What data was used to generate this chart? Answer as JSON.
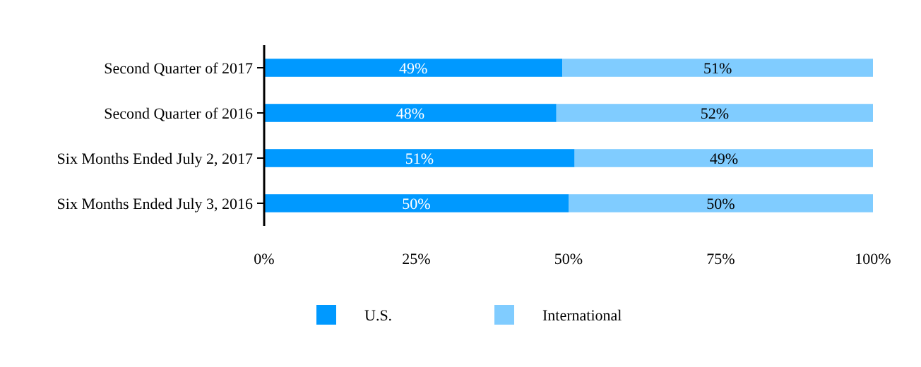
{
  "chart_data": {
    "type": "bar",
    "orientation": "horizontal",
    "stacked": true,
    "categories": [
      "Second Quarter of 2017",
      "Second Quarter of 2016",
      "Six Months Ended July 2, 2017",
      "Six Months Ended July 3, 2016"
    ],
    "series": [
      {
        "name": "U.S.",
        "color": "#0099ff",
        "values": [
          49,
          48,
          51,
          50
        ],
        "value_labels": [
          "49%",
          "48%",
          "51%",
          "50%"
        ]
      },
      {
        "name": "International",
        "color": "#80ccff",
        "values": [
          51,
          52,
          49,
          50
        ],
        "value_labels": [
          "51%",
          "52%",
          "49%",
          "50%"
        ]
      }
    ],
    "xlim": [
      0,
      100
    ],
    "xticks": [
      {
        "value": 0,
        "label": "0%"
      },
      {
        "value": 25,
        "label": "25%"
      },
      {
        "value": 50,
        "label": "50%"
      },
      {
        "value": 75,
        "label": "75%"
      },
      {
        "value": 100,
        "label": "100%"
      }
    ],
    "grid": false,
    "legend": "bottom"
  }
}
